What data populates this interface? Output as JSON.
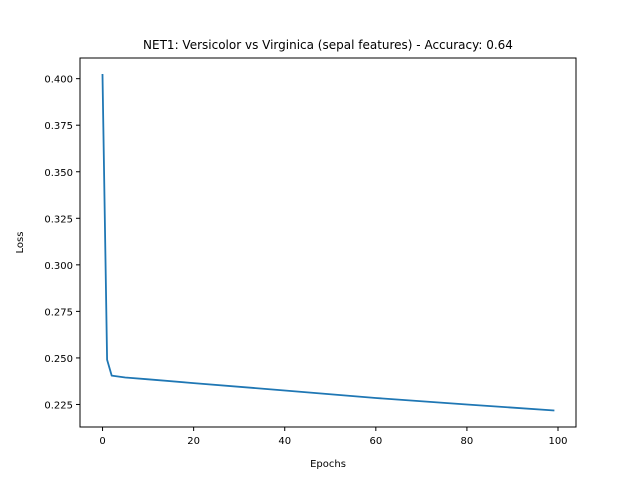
{
  "chart_data": {
    "type": "line",
    "title": "NET1: Versicolor vs Virginica (sepal features) - Accuracy: 0.64",
    "xlabel": "Epochs",
    "ylabel": "Loss",
    "xlim": [
      -4.95,
      103.95
    ],
    "ylim": [
      0.2129,
      0.4111
    ],
    "xticks": [
      0,
      20,
      40,
      60,
      80,
      100
    ],
    "yticks": [
      0.225,
      0.25,
      0.275,
      0.3,
      0.325,
      0.35,
      0.375,
      0.4
    ],
    "xtick_labels": [
      "0",
      "20",
      "40",
      "60",
      "80",
      "100"
    ],
    "ytick_labels": [
      "0.225",
      "0.250",
      "0.275",
      "0.300",
      "0.325",
      "0.350",
      "0.375",
      "0.400"
    ],
    "grid": false,
    "line_color": "#1f77b4",
    "series": [
      {
        "x": [
          0,
          1,
          2,
          5,
          10,
          20,
          40,
          60,
          80,
          99
        ],
        "y": [
          0.402,
          0.249,
          0.2405,
          0.2395,
          0.2385,
          0.2365,
          0.2325,
          0.2285,
          0.225,
          0.2218
        ]
      }
    ]
  }
}
